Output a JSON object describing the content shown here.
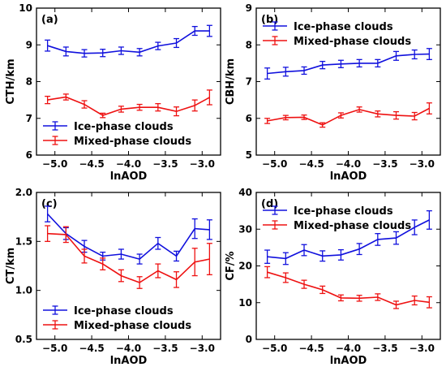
{
  "chart_data": [
    {
      "type": "line",
      "panel_label": "(a)",
      "xlabel": "lnAOD",
      "ylabel": "CTH/km",
      "xlim": [
        -5.25,
        -2.75
      ],
      "ylim": [
        6,
        10
      ],
      "xticks": [
        -5.0,
        -4.5,
        -4.0,
        -3.5,
        -3.0
      ],
      "xtick_labels": [
        "−5.0",
        "−4.5",
        "−4.0",
        "−3.5",
        "−3.0"
      ],
      "yticks": [
        6,
        7,
        8,
        9,
        10
      ],
      "ytick_labels": [
        "6",
        "7",
        "8",
        "9",
        "10"
      ],
      "legend_position": "lower-left",
      "x": [
        -5.1,
        -4.85,
        -4.6,
        -4.35,
        -4.1,
        -3.85,
        -3.6,
        -3.35,
        -3.1,
        -2.9
      ],
      "series": [
        {
          "name": "Ice-phase clouds",
          "color": "#1010dd",
          "values": [
            8.98,
            8.82,
            8.77,
            8.78,
            8.84,
            8.8,
            8.97,
            9.05,
            9.38,
            9.38
          ],
          "errors": [
            0.15,
            0.12,
            0.1,
            0.1,
            0.1,
            0.1,
            0.1,
            0.12,
            0.12,
            0.15
          ]
        },
        {
          "name": "Mixed-phase clouds",
          "color": "#ee1111",
          "values": [
            7.5,
            7.58,
            7.38,
            7.08,
            7.25,
            7.3,
            7.3,
            7.19,
            7.35,
            7.57
          ],
          "errors": [
            0.1,
            0.08,
            0.1,
            0.06,
            0.08,
            0.08,
            0.1,
            0.12,
            0.15,
            0.2
          ]
        }
      ]
    },
    {
      "type": "line",
      "panel_label": "(b)",
      "xlabel": "lnAOD",
      "ylabel": "CBH/km",
      "xlim": [
        -5.25,
        -2.75
      ],
      "ylim": [
        5,
        9
      ],
      "xticks": [
        -5.0,
        -4.5,
        -4.0,
        -3.5,
        -3.0
      ],
      "xtick_labels": [
        "−5.0",
        "−4.5",
        "−4.0",
        "−3.5",
        "−3.0"
      ],
      "yticks": [
        5,
        6,
        7,
        8,
        9
      ],
      "ytick_labels": [
        "5",
        "6",
        "7",
        "8",
        "9"
      ],
      "legend_position": "top",
      "x": [
        -5.1,
        -4.85,
        -4.6,
        -4.35,
        -4.1,
        -3.85,
        -3.6,
        -3.35,
        -3.1,
        -2.9
      ],
      "series": [
        {
          "name": "Ice-phase clouds",
          "color": "#1010dd",
          "values": [
            7.22,
            7.27,
            7.3,
            7.45,
            7.48,
            7.5,
            7.5,
            7.7,
            7.74,
            7.75
          ],
          "errors": [
            0.15,
            0.12,
            0.1,
            0.1,
            0.1,
            0.1,
            0.1,
            0.12,
            0.12,
            0.15
          ]
        },
        {
          "name": "Mixed-phase clouds",
          "color": "#ee1111",
          "values": [
            5.93,
            6.02,
            6.03,
            5.82,
            6.08,
            6.24,
            6.12,
            6.08,
            6.06,
            6.27
          ],
          "errors": [
            0.07,
            0.06,
            0.06,
            0.06,
            0.07,
            0.07,
            0.08,
            0.1,
            0.1,
            0.15
          ]
        }
      ]
    },
    {
      "type": "line",
      "panel_label": "(c)",
      "xlabel": "lnAOD",
      "ylabel": "CT/km",
      "xlim": [
        -5.25,
        -2.75
      ],
      "ylim": [
        0.5,
        2.0
      ],
      "xticks": [
        -5.0,
        -4.5,
        -4.0,
        -3.5,
        -3.0
      ],
      "xtick_labels": [
        "−5.0",
        "−4.5",
        "−4.0",
        "−3.5",
        "−3.0"
      ],
      "yticks": [
        0.5,
        1.0,
        1.5,
        2.0
      ],
      "ytick_labels": [
        "0.5",
        "1.0",
        "1.5",
        "2.0"
      ],
      "legend_position": "lower-left",
      "x": [
        -5.1,
        -4.85,
        -4.6,
        -4.35,
        -4.1,
        -3.85,
        -3.6,
        -3.35,
        -3.1,
        -2.9
      ],
      "series": [
        {
          "name": "Ice-phase clouds",
          "color": "#1010dd",
          "values": [
            1.78,
            1.58,
            1.45,
            1.35,
            1.37,
            1.32,
            1.48,
            1.35,
            1.63,
            1.62
          ],
          "errors": [
            0.08,
            0.06,
            0.06,
            0.04,
            0.05,
            0.05,
            0.06,
            0.05,
            0.1,
            0.1
          ]
        },
        {
          "name": "Mixed-phase clouds",
          "color": "#ee1111",
          "values": [
            1.58,
            1.57,
            1.35,
            1.27,
            1.15,
            1.08,
            1.2,
            1.11,
            1.29,
            1.32
          ],
          "errors": [
            0.08,
            0.08,
            0.07,
            0.06,
            0.06,
            0.06,
            0.07,
            0.08,
            0.14,
            0.16
          ]
        }
      ]
    },
    {
      "type": "line",
      "panel_label": "(d)",
      "xlabel": "lnAOD",
      "ylabel": "CF/%",
      "xlim": [
        -5.25,
        -2.75
      ],
      "ylim": [
        0,
        40
      ],
      "xticks": [
        -5.0,
        -4.5,
        -4.0,
        -3.5,
        -3.0
      ],
      "xtick_labels": [
        "−5.0",
        "−4.5",
        "−4.0",
        "−3.5",
        "−3.0"
      ],
      "yticks": [
        0,
        10,
        20,
        30,
        40
      ],
      "ytick_labels": [
        "0",
        "10",
        "20",
        "30",
        "40"
      ],
      "legend_position": "top",
      "x": [
        -5.1,
        -4.85,
        -4.6,
        -4.35,
        -4.1,
        -3.85,
        -3.6,
        -3.35,
        -3.1,
        -2.9
      ],
      "series": [
        {
          "name": "Ice-phase clouds",
          "color": "#1010dd",
          "values": [
            22.5,
            22.0,
            24.3,
            22.7,
            23.0,
            24.6,
            27.2,
            27.6,
            30.5,
            32.5
          ],
          "errors": [
            1.8,
            1.6,
            1.5,
            1.4,
            1.4,
            1.5,
            1.6,
            1.7,
            2.0,
            2.5
          ]
        },
        {
          "name": "Mixed-phase clouds",
          "color": "#ee1111",
          "values": [
            18.3,
            16.8,
            15.0,
            13.5,
            11.3,
            11.2,
            11.5,
            9.4,
            10.6,
            10.1
          ],
          "errors": [
            1.5,
            1.3,
            1.1,
            1.0,
            0.8,
            0.8,
            0.9,
            1.0,
            1.2,
            1.5
          ]
        }
      ]
    }
  ]
}
